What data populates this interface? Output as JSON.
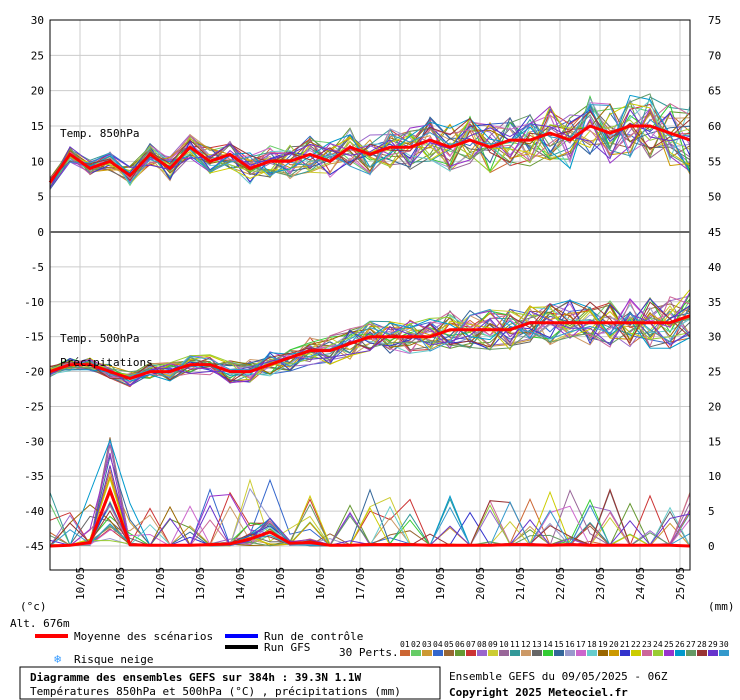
{
  "chart_data": {
    "type": "line",
    "panels": [
      {
        "name": "Temp. 850hPa",
        "left_axis": {
          "ticks": [
            30,
            25,
            20,
            15,
            10,
            5,
            0
          ],
          "range": [
            0,
            30
          ]
        },
        "right_axis": {
          "ticks": [
            75,
            70,
            65,
            60,
            55,
            50
          ],
          "range": [
            45,
            75
          ]
        }
      },
      {
        "name": "Temp. 500hPa",
        "secondary_name": "Précipitations",
        "left_axis": {
          "ticks": [
            -5,
            -10,
            -15,
            -20,
            -25,
            -30,
            -35,
            -40,
            -45
          ],
          "range": [
            -45,
            0
          ]
        },
        "right_axis": {
          "ticks": [
            45,
            40,
            35,
            30,
            25,
            20,
            15,
            10,
            5,
            0
          ],
          "range": [
            0,
            45
          ]
        }
      }
    ],
    "x_dates": [
      "10/05",
      "11/05",
      "12/05",
      "13/05",
      "14/05",
      "15/05",
      "16/05",
      "17/05",
      "18/05",
      "19/05",
      "20/05",
      "21/05",
      "22/05",
      "23/05",
      "24/05",
      "25/05"
    ],
    "x_range_hours": [
      0,
      384
    ],
    "mean_850": [
      7,
      11,
      9,
      10,
      8,
      11,
      9,
      12,
      10,
      11,
      9,
      10,
      10,
      11,
      10,
      12,
      11,
      12,
      12,
      13,
      12,
      13,
      12,
      13,
      13,
      14,
      13,
      15,
      14,
      15,
      15,
      14,
      13
    ],
    "mean_500": [
      -20,
      -19,
      -19,
      -20,
      -21,
      -20,
      -20,
      -19,
      -19,
      -20,
      -20,
      -19,
      -18,
      -17,
      -17,
      -16,
      -15,
      -15,
      -15,
      -15,
      -14,
      -14,
      -14,
      -14,
      -13,
      -13,
      -13,
      -13,
      -13,
      -13,
      -13,
      -13,
      -12
    ],
    "mean_precip": [
      0,
      0.1,
      0.5,
      8,
      0.2,
      0.1,
      0.1,
      0.1,
      0.2,
      0.3,
      1,
      2,
      0.4,
      0.5,
      0.1,
      0.1,
      0.2,
      0.2,
      0.2,
      0.1,
      0.1,
      0.1,
      0.1,
      0.2,
      0.2,
      0.1,
      0.2,
      0.1,
      0.1,
      0.1,
      0.1,
      0.1,
      0
    ]
  },
  "labels": {
    "left_unit": "(°c)",
    "right_unit": "(mm)",
    "altitude": "Alt. 676m",
    "legend_mean": "Moyenne des scénarios",
    "legend_control": "Run de contrôle",
    "legend_gfs": "Run GFS",
    "legend_snow": "Risque neige",
    "legend_perts": "30 Perts.",
    "pert_numbers": [
      "01",
      "02",
      "03",
      "04",
      "05",
      "06",
      "07",
      "08",
      "09",
      "10",
      "11",
      "12",
      "13",
      "14",
      "15",
      "16",
      "17",
      "18",
      "19",
      "20",
      "21",
      "22",
      "23",
      "24",
      "25",
      "26",
      "27",
      "28",
      "29",
      "30"
    ],
    "title_line1": "Diagramme des ensembles GEFS sur 384h : 39.3N 1.1W",
    "title_line2": "Températures 850hPa et 500hPa (°C) , précipitations (mm)",
    "ensemble_info": "Ensemble GEFS du 09/05/2025 - 06Z",
    "copyright": "Copyright 2025 Meteociel.fr"
  },
  "colors": {
    "mean": "#ff0000",
    "control": "#0000ff",
    "gfs": "#000000",
    "snow": "#3399ff",
    "perts": [
      "#cc6633",
      "#66cc66",
      "#cc9933",
      "#3366cc",
      "#996633",
      "#669933",
      "#cc3333",
      "#9966cc",
      "#cccc33",
      "#996699",
      "#339999",
      "#cc9966",
      "#666666",
      "#33cc33",
      "#336699",
      "#9999cc",
      "#cc66cc",
      "#66cccc",
      "#996600",
      "#cc9900",
      "#3333cc",
      "#cccc00",
      "#cc6699",
      "#99cc33",
      "#9933cc",
      "#0099cc",
      "#669966",
      "#993333",
      "#6633cc",
      "#3399cc"
    ]
  }
}
